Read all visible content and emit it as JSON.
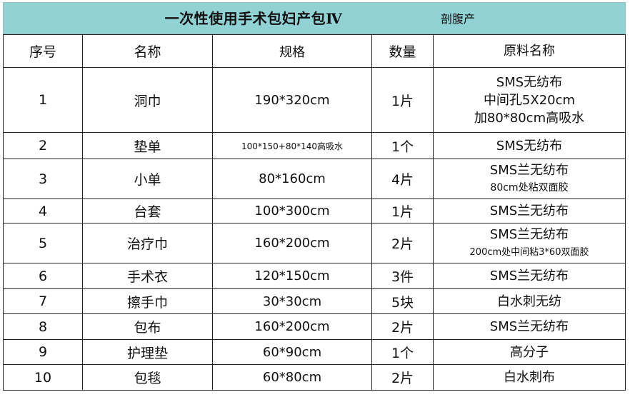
{
  "title": "一次性使用手术包妇产包Ⅳ",
  "subtitle": "剖腹产",
  "headers": [
    "序号",
    "名称",
    "规格",
    "数量",
    "原料名称"
  ],
  "rows": [
    {
      "idx": "1",
      "name": "洞巾",
      "spec": "190*320cm",
      "qty": "1片",
      "mat": [
        "SMS无纺布",
        "中间孔5X20cm",
        "加80*80cm高吸水"
      ]
    },
    {
      "idx": "2",
      "name": "垫单",
      "spec": "100*150+80*140高吸水",
      "qty": "1个",
      "mat": [
        "SMS无纺布"
      ]
    },
    {
      "idx": "3",
      "name": "小单",
      "spec": "80*160cm",
      "qty": "4片",
      "mat": [
        "SMS兰无纺布",
        "80cm处粘双面胶"
      ]
    },
    {
      "idx": "4",
      "name": "台套",
      "spec": "100*300cm",
      "qty": "1片",
      "mat": [
        "SMS兰无纺布"
      ]
    },
    {
      "idx": "5",
      "name": "治疗巾",
      "spec": "160*200cm",
      "qty": "2片",
      "mat": [
        "SMS兰无纺布",
        "200cm处中间粘3*60双面胶"
      ]
    },
    {
      "idx": "6",
      "name": "手术衣",
      "spec": "120*150cm",
      "qty": "3件",
      "mat": [
        "SMS兰无纺布"
      ]
    },
    {
      "idx": "7",
      "name": "擦手巾",
      "spec": "30*30cm",
      "qty": "5块",
      "mat": [
        "白水刺无纺"
      ]
    },
    {
      "idx": "8",
      "name": "包布",
      "spec": "160*200cm",
      "qty": "2片",
      "mat": [
        "SMS兰无纺布"
      ]
    },
    {
      "idx": "9",
      "name": "护理垫",
      "spec": "60*90cm",
      "qty": "1个",
      "mat": [
        "高分子"
      ]
    },
    {
      "idx": "10",
      "name": "包毯",
      "spec": "60*80cm",
      "qty": "2片",
      "mat": [
        "白水刺布"
      ]
    }
  ]
}
